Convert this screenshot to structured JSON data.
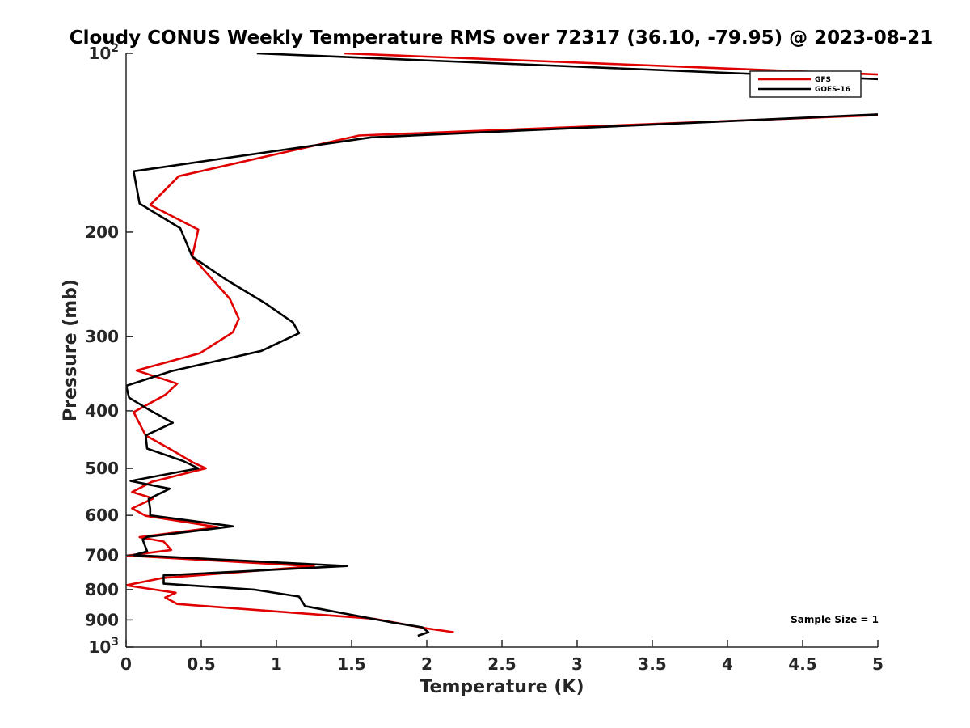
{
  "chart_data": {
    "type": "line",
    "title": "Cloudy CONUS Weekly Temperature RMS over 72317 (36.10, -79.95) @ 2023-08-21",
    "xlabel": "Temperature (K)",
    "ylabel": "Pressure (mb)",
    "xlim": [
      0,
      5
    ],
    "ylim": [
      100,
      1000
    ],
    "yscale": "log",
    "y_reversed": true,
    "grid": false,
    "legend_position": "top-right",
    "x_ticks": [
      0,
      0.5,
      1,
      1.5,
      2,
      2.5,
      3,
      3.5,
      4,
      4.5,
      5
    ],
    "x_tick_labels": [
      "0",
      "0.5",
      "1",
      "1.5",
      "2",
      "2.5",
      "3",
      "3.5",
      "4",
      "4.5",
      "5"
    ],
    "y_ticks": [
      {
        "value": 100,
        "base": "10",
        "exp": "2"
      },
      {
        "value": 200,
        "label": "200"
      },
      {
        "value": 300,
        "label": "300"
      },
      {
        "value": 400,
        "label": "400"
      },
      {
        "value": 500,
        "label": "500"
      },
      {
        "value": 600,
        "label": "600"
      },
      {
        "value": 700,
        "label": "700"
      },
      {
        "value": 800,
        "label": "800"
      },
      {
        "value": 900,
        "label": "900"
      },
      {
        "value": 1000,
        "base": "10",
        "exp": "3"
      }
    ],
    "series": [
      {
        "name": "GFS",
        "color": "#e00000",
        "points": [
          [
            1.45,
            100
          ],
          [
            5.2,
            109
          ],
          [
            5.2,
            126.5
          ],
          [
            1.55,
            137.5
          ],
          [
            0.35,
            161
          ],
          [
            0.16,
            180
          ],
          [
            0.48,
            198
          ],
          [
            0.44,
            220
          ],
          [
            0.54,
            235
          ],
          [
            0.69,
            259
          ],
          [
            0.75,
            280
          ],
          [
            0.71,
            295
          ],
          [
            0.49,
            320
          ],
          [
            0.07,
            342
          ],
          [
            0.34,
            360
          ],
          [
            0.26,
            376
          ],
          [
            0.05,
            402
          ],
          [
            0.13,
            440
          ],
          [
            0.3,
            465
          ],
          [
            0.44,
            488
          ],
          [
            0.53,
            500
          ],
          [
            0.17,
            527
          ],
          [
            0.04,
            548
          ],
          [
            0.18,
            562
          ],
          [
            0.04,
            584
          ],
          [
            0.13,
            601
          ],
          [
            0.61,
            628
          ],
          [
            0.09,
            653
          ],
          [
            0.25,
            664
          ],
          [
            0.3,
            686
          ],
          [
            0.01,
            701
          ],
          [
            1.25,
            731
          ],
          [
            0.24,
            765
          ],
          [
            0.0,
            787
          ],
          [
            0.33,
            810
          ],
          [
            0.26,
            825
          ],
          [
            0.34,
            846
          ],
          [
            1.65,
            896
          ],
          [
            2.0,
            930
          ],
          [
            2.18,
            944
          ]
        ]
      },
      {
        "name": "GOES-16",
        "color": "#000000",
        "points": [
          [
            0.87,
            100
          ],
          [
            5.2,
            111
          ],
          [
            5.2,
            126
          ],
          [
            1.63,
            138.5
          ],
          [
            0.05,
            158
          ],
          [
            0.09,
            179
          ],
          [
            0.36,
            197
          ],
          [
            0.44,
            220
          ],
          [
            0.66,
            240
          ],
          [
            0.92,
            263
          ],
          [
            1.11,
            284
          ],
          [
            1.15,
            296
          ],
          [
            0.9,
            317
          ],
          [
            0.3,
            343
          ],
          [
            0.0,
            363
          ],
          [
            0.02,
            380
          ],
          [
            0.15,
            398
          ],
          [
            0.31,
            419
          ],
          [
            0.13,
            440
          ],
          [
            0.14,
            463
          ],
          [
            0.38,
            486
          ],
          [
            0.48,
            500
          ],
          [
            0.03,
            525
          ],
          [
            0.29,
            541
          ],
          [
            0.15,
            563
          ],
          [
            0.16,
            585
          ],
          [
            0.16,
            600
          ],
          [
            0.71,
            626
          ],
          [
            0.14,
            652
          ],
          [
            0.11,
            659
          ],
          [
            0.14,
            690
          ],
          [
            0.05,
            700
          ],
          [
            1.47,
            730
          ],
          [
            0.25,
            757
          ],
          [
            0.25,
            782
          ],
          [
            0.85,
            800
          ],
          [
            1.15,
            822
          ],
          [
            1.19,
            853
          ],
          [
            1.78,
            910
          ],
          [
            1.97,
            926
          ],
          [
            2.01,
            944
          ],
          [
            1.94,
            957
          ]
        ]
      }
    ],
    "annotations": [
      {
        "text": "Sample Size = 1",
        "x": 4.42,
        "y": 910
      }
    ]
  }
}
